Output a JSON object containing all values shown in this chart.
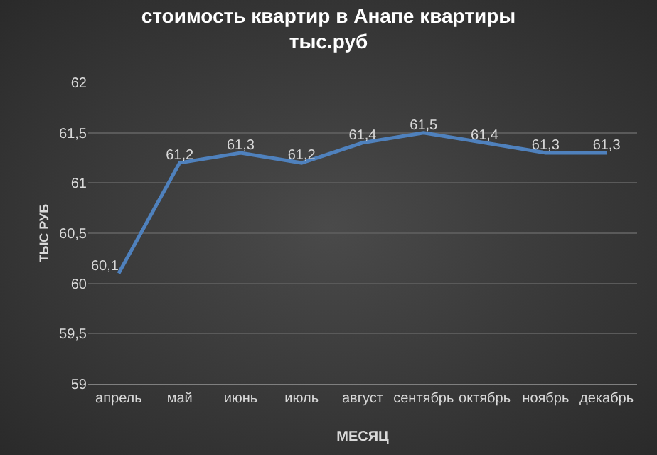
{
  "chart_data": {
    "type": "line",
    "title": "стоимость квартир в Анапе квартиры\nтыс.руб",
    "xlabel": "МЕСЯЦ",
    "ylabel": "ТЫС РУБ",
    "categories": [
      "апрель",
      "май",
      "июнь",
      "июль",
      "август",
      "сентябрь",
      "октябрь",
      "ноябрь",
      "декабрь"
    ],
    "series": [
      {
        "color": "#4f81bd",
        "values": [
          60.1,
          61.2,
          61.3,
          61.2,
          61.4,
          61.5,
          61.4,
          61.3,
          61.3
        ],
        "value_labels": [
          "60,1",
          "61,2",
          "61,3",
          "61,2",
          "61,4",
          "61,5",
          "61,4",
          "61,3",
          "61,3"
        ]
      }
    ],
    "ylim": [
      59,
      62
    ],
    "yticks": [
      {
        "value": 59,
        "label": "59"
      },
      {
        "value": 59.5,
        "label": "59,5"
      },
      {
        "value": 60,
        "label": "60"
      },
      {
        "value": 60.5,
        "label": "60,5"
      },
      {
        "value": 61,
        "label": "61"
      },
      {
        "value": 61.5,
        "label": "61,5"
      },
      {
        "value": 62,
        "label": "62"
      }
    ],
    "grid": "y",
    "marker": "none",
    "line_style": "solid"
  }
}
